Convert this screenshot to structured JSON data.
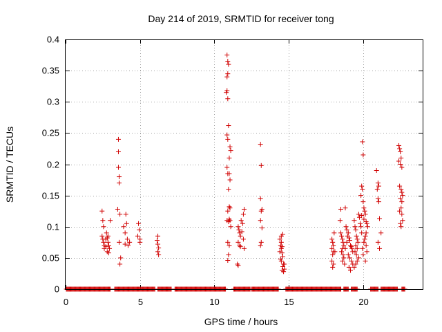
{
  "chart_data": {
    "type": "scatter",
    "title": "Day 214 of 2019, SRMTID for receiver tong",
    "xlabel": "GPS time / hours",
    "ylabel": "SRMTID / TECUs",
    "xlim": [
      0,
      24
    ],
    "ylim": [
      0,
      0.4
    ],
    "xticks": [
      0,
      5,
      10,
      15,
      20
    ],
    "xtick_labels": [
      "0",
      "5",
      "10",
      "15",
      "20"
    ],
    "yticks": [
      0,
      0.05,
      0.1,
      0.15,
      0.2,
      0.25,
      0.3,
      0.35,
      0.4
    ],
    "ytick_labels": [
      "0",
      "0.05",
      "0.1",
      "0.15",
      "0.2",
      "0.25",
      "0.3",
      "0.35",
      "0.4"
    ],
    "grid": true,
    "legend": "none",
    "marker_color": "#d00000",
    "series": [
      {
        "name": "SRMTID",
        "points": [
          [
            2.45,
            0.125
          ],
          [
            2.5,
            0.11
          ],
          [
            2.55,
            0.1
          ],
          [
            2.45,
            0.085
          ],
          [
            2.5,
            0.08
          ],
          [
            2.55,
            0.075
          ],
          [
            2.6,
            0.07
          ],
          [
            2.7,
            0.068
          ],
          [
            2.75,
            0.09
          ],
          [
            2.8,
            0.082
          ],
          [
            2.85,
            0.075
          ],
          [
            2.9,
            0.07
          ],
          [
            2.95,
            0.065
          ],
          [
            2.8,
            0.06
          ],
          [
            2.9,
            0.058
          ],
          [
            3.0,
            0.11
          ],
          [
            2.6,
            0.065
          ],
          [
            2.7,
            0.08
          ],
          [
            2.85,
            0.085
          ],
          [
            3.55,
            0.24
          ],
          [
            3.55,
            0.22
          ],
          [
            3.55,
            0.195
          ],
          [
            3.6,
            0.18
          ],
          [
            3.6,
            0.17
          ],
          [
            3.5,
            0.128
          ],
          [
            3.65,
            0.12
          ],
          [
            3.6,
            0.075
          ],
          [
            3.7,
            0.05
          ],
          [
            3.65,
            0.04
          ],
          [
            3.9,
            0.1
          ],
          [
            4.0,
            0.09
          ],
          [
            4.05,
            0.12
          ],
          [
            4.1,
            0.105
          ],
          [
            4.15,
            0.08
          ],
          [
            4.2,
            0.07
          ],
          [
            4.3,
            0.075
          ],
          [
            4.0,
            0.072
          ],
          [
            4.9,
            0.105
          ],
          [
            4.95,
            0.095
          ],
          [
            4.85,
            0.085
          ],
          [
            5.0,
            0.08
          ],
          [
            5.0,
            0.075
          ],
          [
            6.2,
            0.085
          ],
          [
            6.15,
            0.078
          ],
          [
            6.2,
            0.072
          ],
          [
            6.25,
            0.066
          ],
          [
            6.2,
            0.06
          ],
          [
            6.25,
            0.055
          ],
          [
            10.85,
            0.375
          ],
          [
            10.9,
            0.365
          ],
          [
            10.95,
            0.36
          ],
          [
            10.9,
            0.345
          ],
          [
            10.85,
            0.34
          ],
          [
            10.8,
            0.315
          ],
          [
            10.85,
            0.318
          ],
          [
            10.9,
            0.305
          ],
          [
            10.95,
            0.262
          ],
          [
            10.85,
            0.247
          ],
          [
            10.9,
            0.24
          ],
          [
            11.05,
            0.228
          ],
          [
            11.1,
            0.222
          ],
          [
            11.0,
            0.21
          ],
          [
            10.85,
            0.195
          ],
          [
            10.9,
            0.185
          ],
          [
            11.0,
            0.185
          ],
          [
            11.05,
            0.175
          ],
          [
            10.95,
            0.16
          ],
          [
            11.0,
            0.132
          ],
          [
            11.05,
            0.13
          ],
          [
            10.9,
            0.125
          ],
          [
            11.0,
            0.112
          ],
          [
            10.85,
            0.11
          ],
          [
            10.95,
            0.108
          ],
          [
            11.05,
            0.11
          ],
          [
            11.1,
            0.1
          ],
          [
            10.9,
            0.075
          ],
          [
            11.0,
            0.07
          ],
          [
            10.95,
            0.055
          ],
          [
            10.9,
            0.046
          ],
          [
            11.6,
            0.1
          ],
          [
            11.65,
            0.095
          ],
          [
            11.7,
            0.09
          ],
          [
            11.75,
            0.085
          ],
          [
            11.6,
            0.075
          ],
          [
            11.7,
            0.07
          ],
          [
            11.55,
            0.04
          ],
          [
            11.6,
            0.038
          ],
          [
            11.8,
            0.11
          ],
          [
            11.9,
            0.105
          ],
          [
            11.95,
            0.12
          ],
          [
            12.0,
            0.128
          ],
          [
            11.85,
            0.092
          ],
          [
            11.95,
            0.08
          ],
          [
            12.0,
            0.065
          ],
          [
            11.75,
            0.068
          ],
          [
            13.1,
            0.232
          ],
          [
            13.15,
            0.198
          ],
          [
            13.1,
            0.145
          ],
          [
            13.2,
            0.128
          ],
          [
            13.15,
            0.125
          ],
          [
            13.1,
            0.11
          ],
          [
            13.2,
            0.098
          ],
          [
            13.15,
            0.075
          ],
          [
            13.1,
            0.07
          ],
          [
            14.4,
            0.08
          ],
          [
            14.5,
            0.075
          ],
          [
            14.45,
            0.07
          ],
          [
            14.55,
            0.068
          ],
          [
            14.6,
            0.088
          ],
          [
            14.5,
            0.065
          ],
          [
            14.4,
            0.06
          ],
          [
            14.55,
            0.058
          ],
          [
            14.6,
            0.052
          ],
          [
            14.45,
            0.048
          ],
          [
            14.5,
            0.045
          ],
          [
            14.65,
            0.04
          ],
          [
            14.6,
            0.036
          ],
          [
            14.7,
            0.032
          ],
          [
            14.55,
            0.03
          ],
          [
            14.65,
            0.028
          ],
          [
            14.5,
            0.085
          ],
          [
            14.7,
            0.04
          ],
          [
            17.9,
            0.08
          ],
          [
            17.95,
            0.075
          ],
          [
            18.0,
            0.07
          ],
          [
            17.9,
            0.065
          ],
          [
            18.0,
            0.06
          ],
          [
            17.95,
            0.055
          ],
          [
            17.9,
            0.045
          ],
          [
            18.0,
            0.04
          ],
          [
            17.95,
            0.035
          ],
          [
            18.05,
            0.09
          ],
          [
            18.1,
            0.06
          ],
          [
            18.5,
            0.128
          ],
          [
            18.45,
            0.11
          ],
          [
            18.5,
            0.09
          ],
          [
            18.55,
            0.085
          ],
          [
            18.6,
            0.08
          ],
          [
            18.65,
            0.075
          ],
          [
            18.7,
            0.07
          ],
          [
            18.6,
            0.065
          ],
          [
            18.55,
            0.06
          ],
          [
            18.65,
            0.055
          ],
          [
            18.7,
            0.05
          ],
          [
            18.6,
            0.045
          ],
          [
            18.75,
            0.04
          ],
          [
            18.8,
            0.13
          ],
          [
            18.85,
            0.1
          ],
          [
            18.9,
            0.095
          ],
          [
            18.95,
            0.085
          ],
          [
            19.0,
            0.09
          ],
          [
            19.05,
            0.082
          ],
          [
            19.1,
            0.078
          ],
          [
            19.15,
            0.07
          ],
          [
            19.2,
            0.068
          ],
          [
            19.25,
            0.065
          ],
          [
            19.3,
            0.06
          ],
          [
            19.0,
            0.055
          ],
          [
            19.1,
            0.05
          ],
          [
            19.2,
            0.045
          ],
          [
            19.3,
            0.04
          ],
          [
            19.05,
            0.035
          ],
          [
            19.15,
            0.03
          ],
          [
            18.9,
            0.075
          ],
          [
            18.8,
            0.065
          ],
          [
            19.4,
            0.11
          ],
          [
            19.45,
            0.1
          ],
          [
            19.5,
            0.095
          ],
          [
            19.55,
            0.085
          ],
          [
            19.6,
            0.08
          ],
          [
            19.65,
            0.075
          ],
          [
            19.5,
            0.07
          ],
          [
            19.6,
            0.065
          ],
          [
            19.45,
            0.06
          ],
          [
            19.55,
            0.055
          ],
          [
            19.7,
            0.05
          ],
          [
            19.6,
            0.045
          ],
          [
            19.5,
            0.04
          ],
          [
            19.4,
            0.035
          ],
          [
            19.7,
            0.12
          ],
          [
            19.75,
            0.115
          ],
          [
            19.8,
            0.105
          ],
          [
            19.85,
            0.1
          ],
          [
            19.9,
            0.09
          ],
          [
            19.95,
            0.236
          ],
          [
            20.0,
            0.215
          ],
          [
            19.9,
            0.165
          ],
          [
            19.95,
            0.16
          ],
          [
            19.85,
            0.15
          ],
          [
            20.0,
            0.14
          ],
          [
            20.05,
            0.13
          ],
          [
            20.1,
            0.125
          ],
          [
            20.15,
            0.12
          ],
          [
            19.9,
            0.118
          ],
          [
            20.05,
            0.112
          ],
          [
            20.2,
            0.108
          ],
          [
            20.25,
            0.105
          ],
          [
            20.3,
            0.1
          ],
          [
            20.2,
            0.09
          ],
          [
            20.15,
            0.085
          ],
          [
            20.1,
            0.08
          ],
          [
            20.05,
            0.075
          ],
          [
            20.2,
            0.07
          ],
          [
            20.25,
            0.06
          ],
          [
            20.15,
            0.045
          ],
          [
            19.95,
            0.065
          ],
          [
            20.0,
            0.055
          ],
          [
            20.9,
            0.19
          ],
          [
            21.0,
            0.17
          ],
          [
            21.05,
            0.165
          ],
          [
            20.95,
            0.16
          ],
          [
            21.0,
            0.145
          ],
          [
            21.05,
            0.14
          ],
          [
            21.1,
            0.113
          ],
          [
            21.0,
            0.075
          ],
          [
            21.1,
            0.065
          ],
          [
            21.2,
            0.09
          ],
          [
            22.4,
            0.23
          ],
          [
            22.45,
            0.225
          ],
          [
            22.5,
            0.22
          ],
          [
            22.55,
            0.21
          ],
          [
            22.4,
            0.205
          ],
          [
            22.5,
            0.2
          ],
          [
            22.6,
            0.195
          ],
          [
            22.45,
            0.165
          ],
          [
            22.55,
            0.16
          ],
          [
            22.6,
            0.155
          ],
          [
            22.65,
            0.15
          ],
          [
            22.5,
            0.145
          ],
          [
            22.6,
            0.14
          ],
          [
            22.55,
            0.13
          ],
          [
            22.45,
            0.125
          ],
          [
            22.6,
            0.12
          ],
          [
            22.65,
            0.11
          ],
          [
            22.5,
            0.105
          ],
          [
            22.55,
            0.1
          ]
        ],
        "baseline_zero_segments": [
          [
            0.05,
            3.0
          ],
          [
            3.3,
            6.0
          ],
          [
            6.2,
            7.1
          ],
          [
            7.35,
            10.75
          ],
          [
            11.3,
            12.4
          ],
          [
            12.5,
            14.3
          ],
          [
            14.8,
            18.5
          ],
          [
            18.7,
            19.0
          ],
          [
            19.2,
            19.6
          ],
          [
            20.5,
            21.0
          ],
          [
            21.2,
            22.3
          ],
          [
            22.6,
            22.8
          ]
        ]
      }
    ]
  }
}
